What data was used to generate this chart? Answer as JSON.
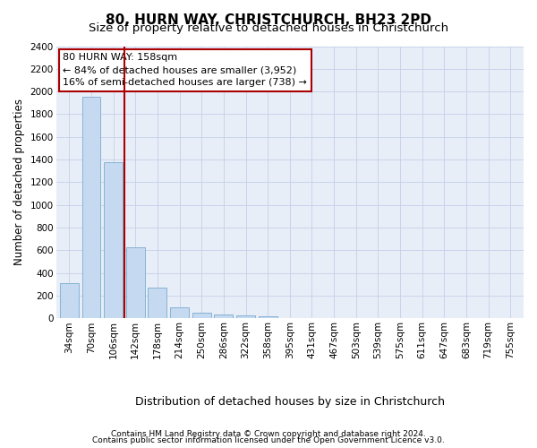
{
  "title": "80, HURN WAY, CHRISTCHURCH, BH23 2PD",
  "subtitle": "Size of property relative to detached houses in Christchurch",
  "xlabel": "Distribution of detached houses by size in Christchurch",
  "ylabel": "Number of detached properties",
  "categories": [
    "34sqm",
    "70sqm",
    "106sqm",
    "142sqm",
    "178sqm",
    "214sqm",
    "250sqm",
    "286sqm",
    "322sqm",
    "358sqm",
    "395sqm",
    "431sqm",
    "467sqm",
    "503sqm",
    "539sqm",
    "575sqm",
    "611sqm",
    "647sqm",
    "683sqm",
    "719sqm",
    "755sqm"
  ],
  "values": [
    315,
    1950,
    1380,
    630,
    270,
    100,
    48,
    35,
    30,
    20,
    0,
    0,
    0,
    0,
    0,
    0,
    0,
    0,
    0,
    0,
    0
  ],
  "bar_color": "#c5d9f0",
  "bar_edge_color": "#7aabcf",
  "ylim_max": 2400,
  "yticks": [
    0,
    200,
    400,
    600,
    800,
    1000,
    1200,
    1400,
    1600,
    1800,
    2000,
    2200,
    2400
  ],
  "vline_x": 2.5,
  "vline_color": "#aa0000",
  "annotation_text_line1": "80 HURN WAY: 158sqm",
  "annotation_text_line2": "← 84% of detached houses are smaller (3,952)",
  "annotation_text_line3": "16% of semi-detached houses are larger (738) →",
  "footer_line1": "Contains HM Land Registry data © Crown copyright and database right 2024.",
  "footer_line2": "Contains public sector information licensed under the Open Government Licence v3.0.",
  "bg_color": "#ffffff",
  "plot_bg_color": "#e8eef8",
  "title_fontsize": 11,
  "subtitle_fontsize": 9.5,
  "ylabel_fontsize": 8.5,
  "xlabel_fontsize": 9,
  "tick_fontsize": 7.5,
  "annot_fontsize": 8,
  "footer_fontsize": 6.5
}
